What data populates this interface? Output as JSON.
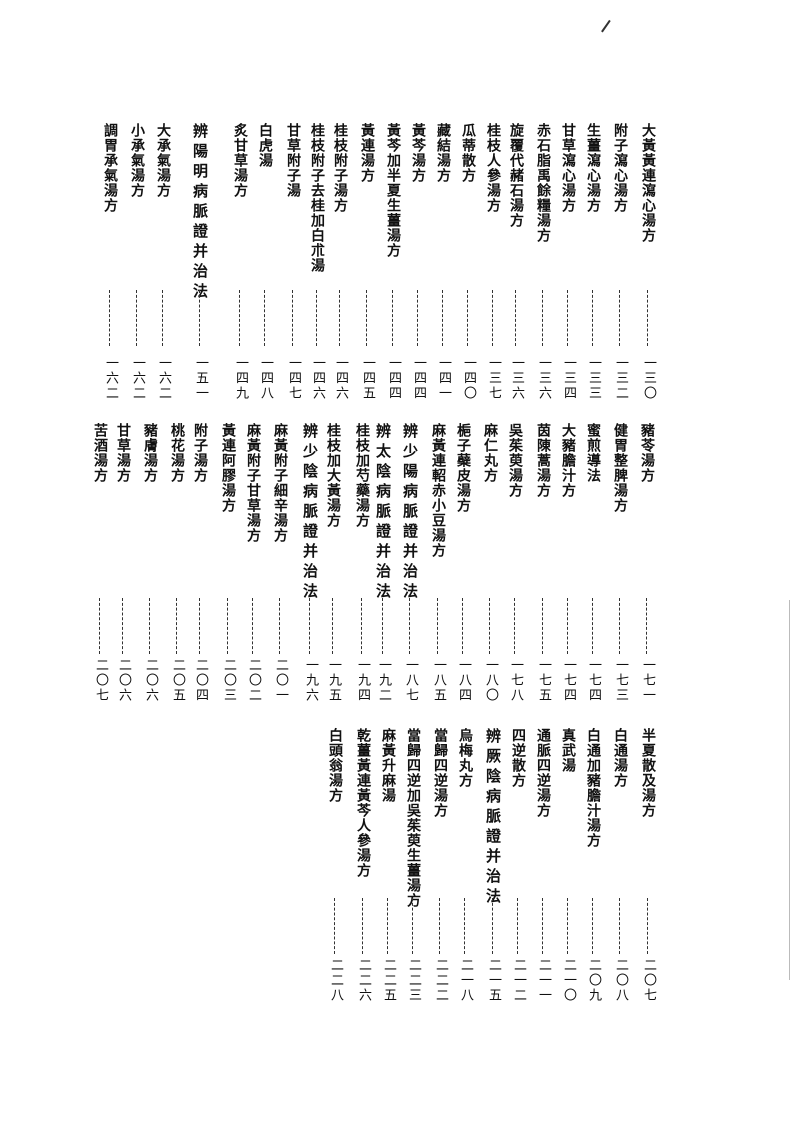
{
  "toc": {
    "bands": [
      {
        "entries": [
          {
            "title": "大黃黃連瀉心湯方",
            "page": "一三〇"
          },
          {
            "title": "附子瀉心湯方",
            "page": "一三二"
          },
          {
            "title": "生薑瀉心湯方",
            "page": "一三三"
          },
          {
            "title": "甘草瀉心湯方",
            "page": "一三四"
          },
          {
            "title": "赤石脂禹餘糧湯方",
            "page": "一三六"
          },
          {
            "title": "旋覆代赭石湯方",
            "page": "一三六"
          },
          {
            "title": "桂枝人參湯方",
            "page": "一三七"
          },
          {
            "title": "瓜蒂散方",
            "page": "一四〇"
          },
          {
            "title": "藏結湯方",
            "page": "一四一"
          },
          {
            "title": "黃芩湯方",
            "page": "一四四"
          },
          {
            "title": "黃芩加半夏生薑湯方",
            "page": "一四四"
          },
          {
            "title": "黃連湯方",
            "page": "一四五"
          },
          {
            "title": "桂枝附子湯方",
            "page": "一四六"
          },
          {
            "title": "桂枝附子去桂加白朮湯",
            "page": "一四六"
          },
          {
            "title": "甘草附子湯",
            "page": "一四七"
          },
          {
            "title": "白虎湯",
            "page": "一四八"
          },
          {
            "title": "炙甘草湯方",
            "page": "一四九"
          },
          {
            "title": "辨陽明病脈證并治法",
            "page": "一五一"
          },
          {
            "title": "大承氣湯方",
            "page": "一六二"
          },
          {
            "title": "小承氣湯方",
            "page": "一六二"
          },
          {
            "title": "調胃承氣湯方",
            "page": "一六二"
          }
        ]
      },
      {
        "entries": [
          {
            "title": "豬苓湯方",
            "page": "一七一"
          },
          {
            "title": "健胃整脾湯方",
            "page": "一七三"
          },
          {
            "title": "蜜煎導法",
            "page": "一七四"
          },
          {
            "title": "大豬膽汁方",
            "page": "一七四"
          },
          {
            "title": "茵陳蒿湯方",
            "page": "一七五"
          },
          {
            "title": "吳茱萸湯方",
            "page": "一七八"
          },
          {
            "title": "麻仁丸方",
            "page": "一八〇"
          },
          {
            "title": "梔子蘗皮湯方",
            "page": "一八四"
          },
          {
            "title": "麻黃連軺赤小豆湯方",
            "page": "一八五"
          },
          {
            "title": "辨少陽病脈證并治法",
            "page": "一八七"
          },
          {
            "title": "辨太陰病脈證并治法",
            "page": "一九二"
          },
          {
            "title": "桂枝加芍藥湯方",
            "page": "一九四"
          },
          {
            "title": "桂枝加大黃湯方",
            "page": "一九五"
          },
          {
            "title": "辨少陰病脈證并治法",
            "page": "一九六"
          },
          {
            "title": "麻黃附子細辛湯方",
            "page": "二〇一"
          },
          {
            "title": "麻黃附子甘草湯方",
            "page": "二〇二"
          },
          {
            "title": "黃連阿膠湯方",
            "page": "二〇三"
          },
          {
            "title": "附子湯方",
            "page": "二〇四"
          },
          {
            "title": "桃花湯方",
            "page": "二〇五"
          },
          {
            "title": "豬膚湯方",
            "page": "二〇六"
          },
          {
            "title": "甘草湯方",
            "page": "二〇六"
          },
          {
            "title": "苦酒湯方",
            "page": "二〇七"
          }
        ]
      },
      {
        "entries": [
          {
            "title": "半夏散及湯方",
            "page": "二〇七"
          },
          {
            "title": "白通湯方",
            "page": "二〇八"
          },
          {
            "title": "白通加豬膽汁湯方",
            "page": "二〇九"
          },
          {
            "title": "真武湯",
            "page": "二一〇"
          },
          {
            "title": "通脈四逆湯方",
            "page": "二一一"
          },
          {
            "title": "四逆散方",
            "page": "二一二"
          },
          {
            "title": "辨厥陰病脈證并治法",
            "page": "二一五"
          },
          {
            "title": "烏梅丸方",
            "page": "二一八"
          },
          {
            "title": "當歸四逆湯方",
            "page": "二二二"
          },
          {
            "title": "當歸四逆加吳茱萸生薑湯方",
            "page": "二二三"
          },
          {
            "title": "麻黃升麻湯",
            "page": "二二五"
          },
          {
            "title": "乾薑黃連黃芩人參湯方",
            "page": "二二六"
          },
          {
            "title": "白頭翁湯方",
            "page": "二二八"
          }
        ]
      }
    ]
  }
}
